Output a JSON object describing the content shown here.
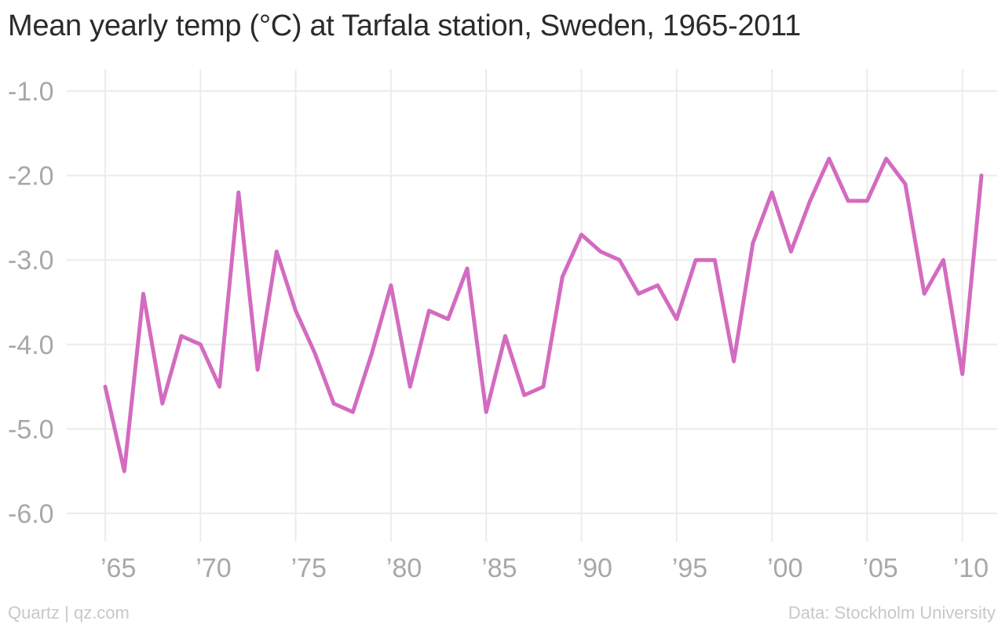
{
  "title": "Mean yearly temp (°C) at Tarfala station, Sweden, 1965-2011",
  "footer": {
    "left": "Quartz | qz.com",
    "right": "Data: Stockholm University"
  },
  "colors": {
    "line": "#d36bc0",
    "grid": "#ececec",
    "tick_text": "#a8a8a8"
  },
  "chart_data": {
    "type": "line",
    "title": "Mean yearly temp (°C) at Tarfala station, Sweden, 1965-2011",
    "xlabel": "",
    "ylabel": "",
    "ylim": [
      -6.0,
      -1.0
    ],
    "xlim": [
      1965,
      2011
    ],
    "grid": true,
    "y_ticks": [
      -1.0,
      -2.0,
      -3.0,
      -4.0,
      -5.0,
      -6.0
    ],
    "y_tick_labels": [
      "-1.0",
      "-2.0",
      "-3.0",
      "-4.0",
      "-5.0",
      "-6.0"
    ],
    "x_ticks": [
      1965,
      1970,
      1975,
      1980,
      1985,
      1990,
      1995,
      2000,
      2005,
      2010
    ],
    "x_tick_labels": [
      "’65",
      "’70",
      "’75",
      "’80",
      "’85",
      "’90",
      "’95",
      "’00",
      "’05",
      "’10"
    ],
    "x": [
      1965,
      1966,
      1967,
      1968,
      1969,
      1970,
      1971,
      1972,
      1973,
      1974,
      1975,
      1976,
      1977,
      1978,
      1979,
      1980,
      1981,
      1982,
      1983,
      1984,
      1985,
      1986,
      1987,
      1988,
      1989,
      1990,
      1991,
      1992,
      1993,
      1994,
      1995,
      1996,
      1997,
      1998,
      1999,
      2000,
      2001,
      2002,
      2003,
      2004,
      2005,
      2006,
      2007,
      2008,
      2009,
      2010,
      2011
    ],
    "series": [
      {
        "values": [
          -4.5,
          -5.5,
          -3.4,
          -4.7,
          -3.9,
          -4.0,
          -4.5,
          -2.2,
          -4.3,
          -2.9,
          -3.6,
          -4.1,
          -4.7,
          -4.8,
          -4.1,
          -3.3,
          -4.5,
          -3.6,
          -3.7,
          -3.1,
          -4.8,
          -3.9,
          -4.6,
          -4.5,
          -3.2,
          -2.7,
          -2.9,
          -3.0,
          -3.4,
          -3.3,
          -3.7,
          -3.0,
          -3.0,
          -4.2,
          -2.8,
          -2.2,
          -2.9,
          -2.3,
          -1.8,
          -2.3,
          -2.3,
          -1.8,
          -2.1,
          -3.4,
          -3.0,
          -4.35,
          -2.0
        ]
      }
    ]
  }
}
